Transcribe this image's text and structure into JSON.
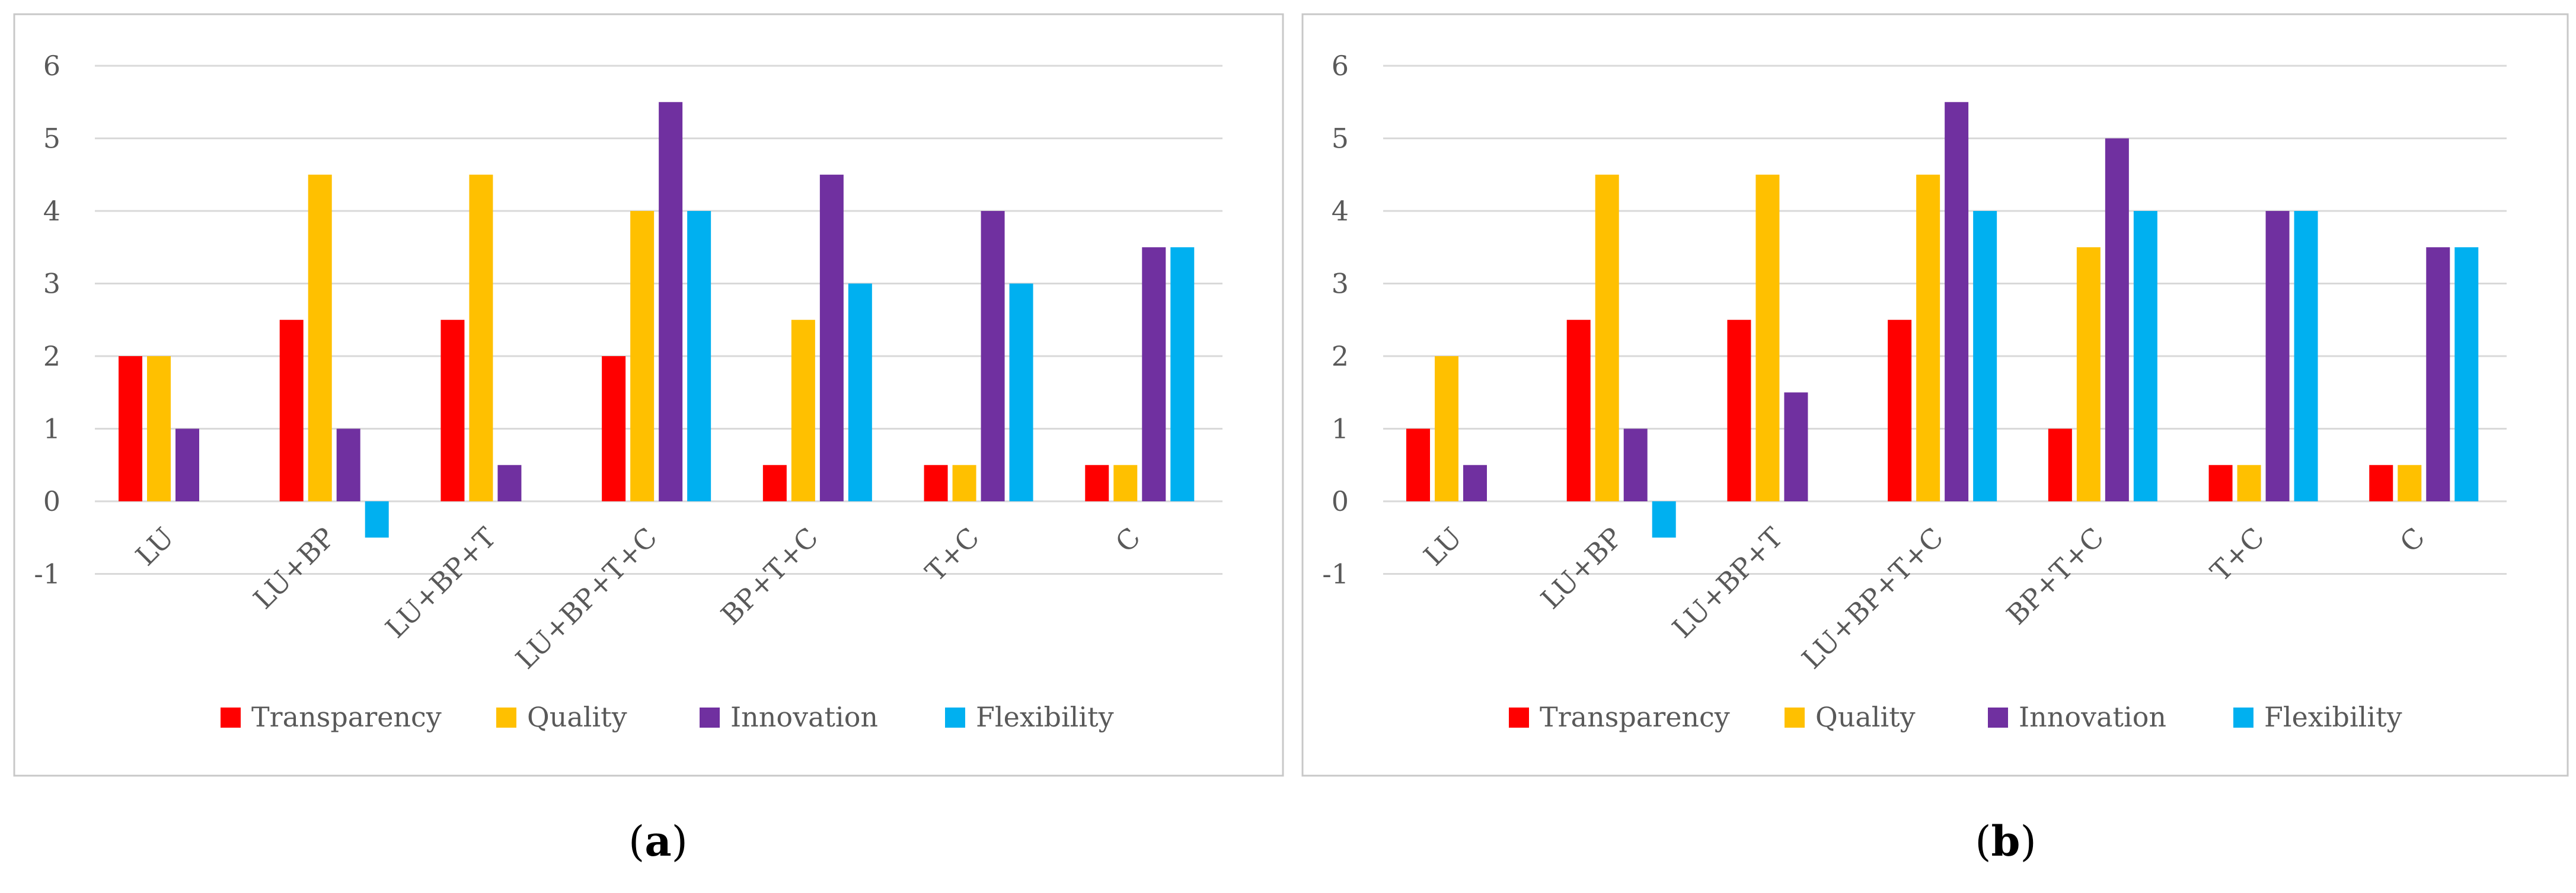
{
  "colors": {
    "Transparency": "#ff0000",
    "Quality": "#ffc000",
    "Innovation": "#7030a0",
    "Flexibility": "#00b0f0",
    "grid": "#d9d9d9",
    "frame": "#c8c8c8",
    "tick_text": "#595959"
  },
  "captions": [
    {
      "open": "(",
      "letter": "a",
      "close": ")"
    },
    {
      "open": "(",
      "letter": "b",
      "close": ")"
    }
  ],
  "chart_data": [
    {
      "id": "a",
      "type": "bar",
      "categories": [
        "LU",
        "LU+BP",
        "LU+BP+T",
        "LU+BP+T+C",
        "BP+T+C",
        "T+C",
        "C"
      ],
      "series": [
        {
          "name": "Transparency",
          "values": [
            2,
            2.5,
            2.5,
            2,
            0.5,
            0.5,
            0.5
          ]
        },
        {
          "name": "Quality",
          "values": [
            2,
            4.5,
            4.5,
            4,
            2.5,
            0.5,
            0.5
          ]
        },
        {
          "name": "Innovation",
          "values": [
            1,
            1,
            0.5,
            5.5,
            4.5,
            4,
            3.5
          ]
        },
        {
          "name": "Flexibility",
          "values": [
            0,
            -0.5,
            0,
            4,
            3,
            3,
            3.5
          ]
        }
      ],
      "yticks": [
        "-1",
        "0",
        "1",
        "2",
        "3",
        "4",
        "5",
        "6"
      ],
      "ylim": [
        -1,
        6
      ],
      "grid": true,
      "legend": "bottom",
      "title": "",
      "xlabel": "",
      "ylabel": ""
    },
    {
      "id": "b",
      "type": "bar",
      "categories": [
        "LU",
        "LU+BP",
        "LU+BP+T",
        "LU+BP+T+C",
        "BP+T+C",
        "T+C",
        "C"
      ],
      "series": [
        {
          "name": "Transparency",
          "values": [
            1,
            2.5,
            2.5,
            2.5,
            1,
            0.5,
            0.5
          ]
        },
        {
          "name": "Quality",
          "values": [
            2,
            4.5,
            4.5,
            4.5,
            3.5,
            0.5,
            0.5
          ]
        },
        {
          "name": "Innovation",
          "values": [
            0.5,
            1,
            1.5,
            5.5,
            5,
            4,
            3.5
          ]
        },
        {
          "name": "Flexibility",
          "values": [
            0,
            -0.5,
            0,
            4,
            4,
            4,
            3.5
          ]
        }
      ],
      "yticks": [
        "-1",
        "0",
        "1",
        "2",
        "3",
        "4",
        "5",
        "6"
      ],
      "ylim": [
        -1,
        6
      ],
      "grid": true,
      "legend": "bottom",
      "title": "",
      "xlabel": "",
      "ylabel": ""
    }
  ]
}
